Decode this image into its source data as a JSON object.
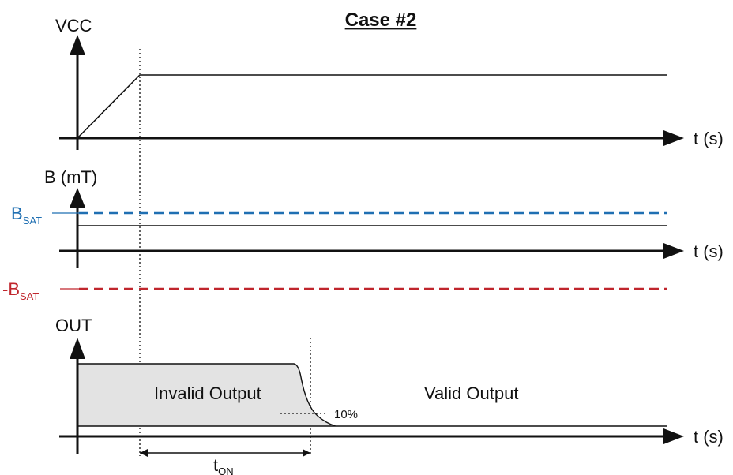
{
  "title": "Case #2",
  "vcc_panel": {
    "y_label": "VCC",
    "x_label": "t (s)"
  },
  "field_panel": {
    "y_label": "B (mT)",
    "x_label": "t (s)",
    "bsat_pos": {
      "main": "B",
      "sub": "SAT",
      "color": "#1f6fb2"
    },
    "bsat_neg": {
      "main": "-B",
      "sub": "SAT",
      "color": "#c0262d"
    }
  },
  "out_panel": {
    "y_label": "OUT",
    "x_label": "t (s)",
    "invalid_label": "Invalid Output",
    "valid_label": "Valid Output",
    "threshold_label": "10%",
    "ton": {
      "main": "t",
      "sub": "ON"
    },
    "invalid_fill": "#e3e3e3"
  }
}
